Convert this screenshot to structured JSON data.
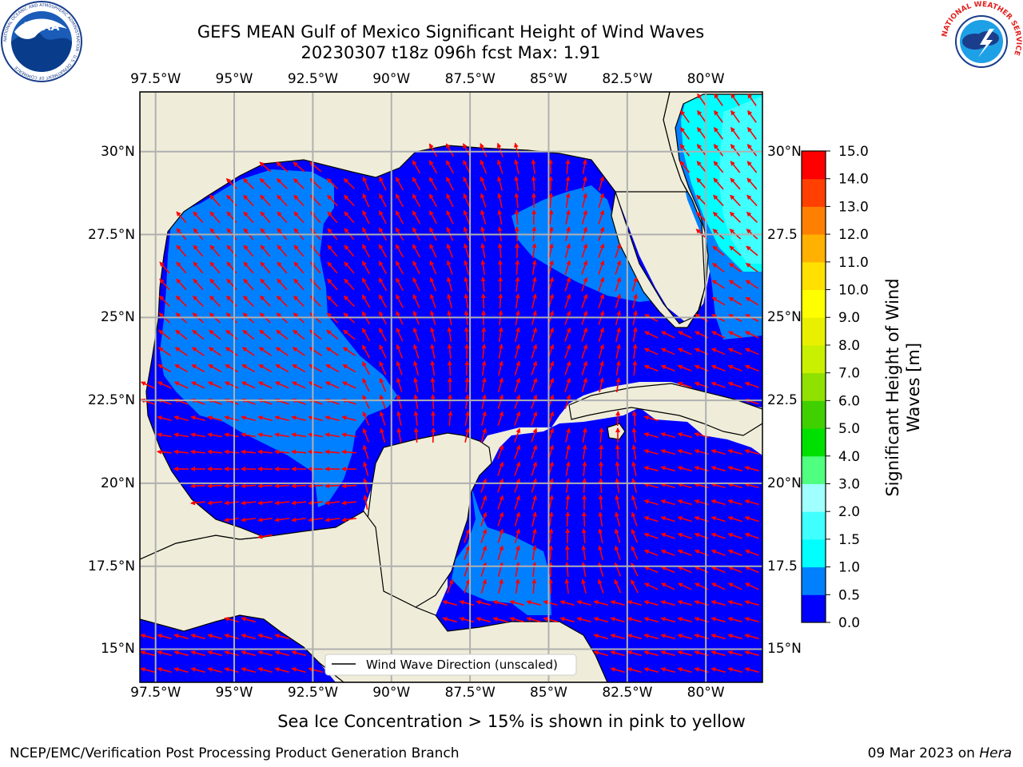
{
  "header": {
    "title_line1": "GEFS MEAN Gulf of Mexico Significant Height of Wind Waves",
    "title_line2": "20230307 t18z 096h fcst   Max: 1.91",
    "noaa_logo_text": "NOAA",
    "noaa_ring_text": "NATIONAL OCEANIC AND ATMOSPHERIC ADMINISTRATION · U.S. DEPARTMENT OF COMMERCE",
    "nws_ring_text": "NATIONAL WEATHER SERVICE"
  },
  "map": {
    "lon_ticks": [
      "97.5°W",
      "95°W",
      "92.5°W",
      "90°W",
      "87.5°W",
      "85°W",
      "82.5°W",
      "80°W"
    ],
    "lon_values": [
      -97.5,
      -95,
      -92.5,
      -90,
      -87.5,
      -85,
      -82.5,
      -80
    ],
    "lat_ticks_left": [
      "30°N",
      "27.5°N",
      "25°N",
      "22.5°N",
      "20°N",
      "17.5°N",
      "15°N"
    ],
    "lat_ticks_right": [
      "30°N",
      "27.5",
      "25°N",
      "22.5",
      "20°N",
      "17.5",
      "15°N"
    ],
    "lat_values": [
      30,
      27.5,
      25,
      22.5,
      20,
      17.5,
      15
    ],
    "extent": {
      "lon_min": -98,
      "lon_max": -78.2,
      "lat_min": 14,
      "lat_max": 31.8
    },
    "legend_text": "Wind Wave Direction (unscaled)",
    "colors": {
      "land": "#efedd9",
      "ocean_0": "#0000fe",
      "ocean_05": "#0080ff",
      "ocean_1": "#00ffff",
      "ocean_15": "#40ffff",
      "arrow": "#ff0000",
      "grid": "#b0b0b0"
    }
  },
  "colorbar": {
    "label": "Significant Height of Wind Waves [m]",
    "ticks": [
      "0.0",
      "0.5",
      "1.0",
      "1.5",
      "2.0",
      "3.0",
      "4.0",
      "5.0",
      "6.0",
      "7.0",
      "8.0",
      "9.0",
      "10.0",
      "11.0",
      "12.0",
      "13.0",
      "14.0",
      "15.0"
    ],
    "colors": [
      "#0000ff",
      "#0080ff",
      "#00ffff",
      "#40ffff",
      "#a0ffff",
      "#50ff80",
      "#00e000",
      "#40d000",
      "#90e000",
      "#c8f000",
      "#e8f000",
      "#ffff00",
      "#ffe000",
      "#ffb000",
      "#ff8000",
      "#ff4000",
      "#ff0000"
    ]
  },
  "footer": {
    "sea_ice_note": "Sea Ice Concentration > 15% is shown in pink to yellow",
    "left": "NCEP/EMC/Verification Post Processing Product Generation Branch",
    "right_date": "09 Mar 2023 on",
    "right_host": "Hera"
  }
}
